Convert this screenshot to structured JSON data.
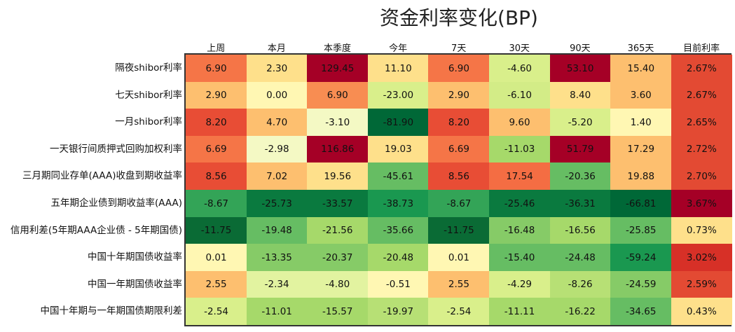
{
  "chart_data": {
    "type": "heatmap",
    "title": "资金利率变化(BP)",
    "columns": [
      "上周",
      "本月",
      "本季度",
      "今年",
      "7天",
      "30天",
      "90天",
      "365天",
      "目前利率"
    ],
    "rows": [
      {
        "label": "隔夜shibor利率",
        "values": [
          "6.90",
          "2.30",
          "129.45",
          "11.10",
          "6.90",
          "-4.60",
          "53.10",
          "15.40",
          "2.67%"
        ]
      },
      {
        "label": "七天shibor利率",
        "values": [
          "2.90",
          "0.00",
          "6.90",
          "-23.00",
          "2.90",
          "-6.10",
          "8.40",
          "3.60",
          "2.67%"
        ]
      },
      {
        "label": "一月shibor利率",
        "values": [
          "8.20",
          "4.70",
          "-3.10",
          "-81.90",
          "8.20",
          "9.60",
          "-5.20",
          "1.40",
          "2.65%"
        ]
      },
      {
        "label": "一天银行间质押式回购加权利率",
        "values": [
          "6.69",
          "-2.98",
          "116.86",
          "19.03",
          "6.69",
          "-11.03",
          "51.79",
          "17.29",
          "2.72%"
        ]
      },
      {
        "label": "三月期同业存单(AAA)收盘到期收益率",
        "values": [
          "8.56",
          "7.02",
          "19.56",
          "-45.61",
          "8.56",
          "17.54",
          "-20.36",
          "19.88",
          "2.70%"
        ]
      },
      {
        "label": "五年期企业债到期收益率(AAA)",
        "values": [
          "-8.67",
          "-25.73",
          "-33.57",
          "-38.73",
          "-8.67",
          "-25.46",
          "-36.31",
          "-66.81",
          "3.67%"
        ]
      },
      {
        "label": "信用利差(5年期AAA企业债 - 5年期国债)",
        "values": [
          "-11.75",
          "-19.48",
          "-21.56",
          "-35.66",
          "-11.75",
          "-16.48",
          "-16.56",
          "-25.85",
          "0.73%"
        ]
      },
      {
        "label": "中国十年期国债收益率",
        "values": [
          "0.01",
          "-13.35",
          "-20.37",
          "-20.48",
          "0.01",
          "-15.40",
          "-24.48",
          "-59.24",
          "3.02%"
        ]
      },
      {
        "label": "中国一年期国债收益率",
        "values": [
          "2.55",
          "-2.34",
          "-4.80",
          "-0.51",
          "2.55",
          "-4.29",
          "-8.26",
          "-24.59",
          "2.59%"
        ]
      },
      {
        "label": "中国十年期与一年期国债期限利差",
        "values": [
          "-2.54",
          "-11.01",
          "-15.57",
          "-19.97",
          "-2.54",
          "-11.11",
          "-16.22",
          "-34.65",
          "0.43%"
        ]
      }
    ],
    "colors": [
      [
        "#f57547",
        "#fee08b",
        "#a50026",
        "#fee08b",
        "#f57547",
        "#d9ef8b",
        "#a50026",
        "#fdbf6f",
        "#e34a33"
      ],
      [
        "#fdbf6f",
        "#fff7b3",
        "#f88d52",
        "#d9ef8b",
        "#fdbf6f",
        "#d3ec87",
        "#fee08b",
        "#fdbf6f",
        "#e34a33"
      ],
      [
        "#e84d35",
        "#fdbf6f",
        "#f4f9c4",
        "#006837",
        "#e84d35",
        "#fdbf6f",
        "#d9ef8b",
        "#fff7b3",
        "#e34a33"
      ],
      [
        "#f57547",
        "#f4f9c4",
        "#a50026",
        "#fee08b",
        "#f57547",
        "#a6d96a",
        "#a50026",
        "#fdbf6f",
        "#e34a33"
      ],
      [
        "#e84d35",
        "#fdbf6f",
        "#fee08b",
        "#66bd63",
        "#e84d35",
        "#f46d43",
        "#66bd63",
        "#fdbf6f",
        "#e34a33"
      ],
      [
        "#33a457",
        "#0a7a3f",
        "#0a7a3f",
        "#1a9850",
        "#33a457",
        "#0a7a3f",
        "#0a7a3f",
        "#006837",
        "#a50026"
      ],
      [
        "#0a6b35",
        "#66bd63",
        "#a6d96a",
        "#66bd63",
        "#0a6b35",
        "#86cb67",
        "#a6d96a",
        "#66bd63",
        "#fee08b"
      ],
      [
        "#fff7b3",
        "#86cb67",
        "#86cb67",
        "#a6d96a",
        "#fff7b3",
        "#66bd63",
        "#66bd63",
        "#1a9850",
        "#d73027"
      ],
      [
        "#fdbf6f",
        "#e2f3a0",
        "#e2f3a0",
        "#fff7b3",
        "#fdbf6f",
        "#d9ef8b",
        "#b7e075",
        "#86cb67",
        "#e34a33"
      ],
      [
        "#d9ef8b",
        "#a6d96a",
        "#a6d96a",
        "#b7e075",
        "#d9ef8b",
        "#a6d96a",
        "#a6d96a",
        "#66bd63",
        "#fee08b"
      ]
    ]
  }
}
